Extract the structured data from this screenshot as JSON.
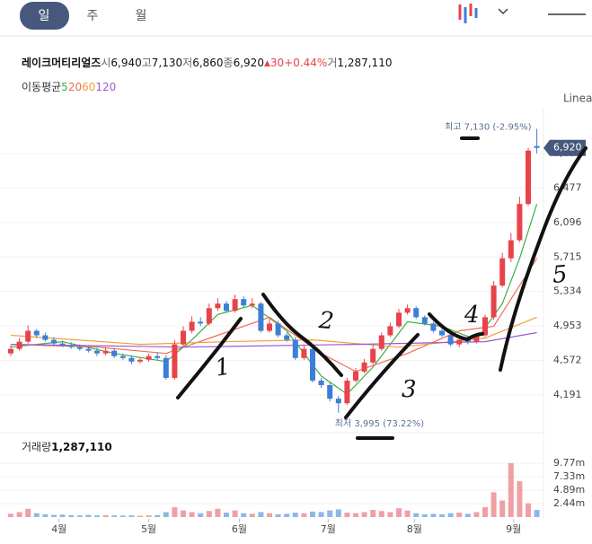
{
  "header": {
    "tabs": [
      "일",
      "주",
      "월"
    ]
  },
  "chart_data": {
    "type": "candlestick",
    "name": "레이크머티리얼즈",
    "summary": [
      {
        "label": "시",
        "value": "6,940"
      },
      {
        "label": "고",
        "value": "7,130"
      },
      {
        "label": "저",
        "value": "6,860"
      },
      {
        "label": "종",
        "value": "6,920"
      }
    ],
    "change": "30",
    "change_pct": "+0.44%",
    "volume_label": "거",
    "volume_text": "1,287,110",
    "ma_title": "이동평균",
    "scale_label": "Linear",
    "high_label": "최고 7,130 (-2.95%)",
    "low_label": "최저 3,995 (73.22%)",
    "last_label": "6,920",
    "up_color": "#e8434a",
    "down_color": "#3d7ed6",
    "ylim": [
      3993,
      7264
    ],
    "yticks": [
      {
        "value": 4191,
        "label": "4,191"
      },
      {
        "value": 4572,
        "label": "4,572"
      },
      {
        "value": 4953,
        "label": "4,953"
      },
      {
        "value": 5334,
        "label": "5,334"
      },
      {
        "value": 5715,
        "label": "5,715"
      },
      {
        "value": 6096,
        "label": "6,096"
      },
      {
        "value": 6477,
        "label": "6,477"
      },
      {
        "value": 6858,
        "label": "6,858"
      }
    ],
    "xticks": [
      {
        "value": 5.6,
        "label": "4월"
      },
      {
        "value": 16,
        "label": "5월"
      },
      {
        "value": 26.5,
        "label": "6월"
      },
      {
        "value": 36.8,
        "label": "7월"
      },
      {
        "value": 46.8,
        "label": "8월"
      },
      {
        "value": 58.3,
        "label": "9월"
      }
    ],
    "open": [
      4650,
      4700,
      4780,
      4900,
      4850,
      4800,
      4760,
      4740,
      4720,
      4700,
      4680,
      4650,
      4680,
      4620,
      4600,
      4560,
      4580,
      4620,
      4600,
      4380,
      4750,
      4900,
      5000,
      4980,
      5150,
      5200,
      5120,
      5250,
      5180,
      5200,
      4900,
      4980,
      4850,
      4800,
      4600,
      4700,
      4350,
      4300,
      4150,
      4100,
      4350,
      4450,
      4550,
      4700,
      4850,
      4950,
      5100,
      5150,
      5050,
      4980,
      4900,
      4850,
      4750,
      4800,
      4780,
      4850,
      5050,
      5400,
      5700,
      5900,
      6300,
      6940
    ],
    "high": [
      4740,
      4820,
      4960,
      4920,
      4880,
      4830,
      4790,
      4770,
      4750,
      4730,
      4710,
      4720,
      4710,
      4650,
      4630,
      4610,
      4650,
      4660,
      4630,
      4800,
      4950,
      5060,
      5050,
      5200,
      5260,
      5230,
      5300,
      5280,
      5260,
      5220,
      5030,
      5010,
      4880,
      4830,
      4740,
      4730,
      4380,
      4330,
      4180,
      4380,
      4490,
      4590,
      4740,
      4880,
      4990,
      5140,
      5190,
      5170,
      5070,
      5000,
      4920,
      4870,
      4830,
      4830,
      4870,
      5080,
      5450,
      5760,
      5980,
      6380,
      6920,
      7130
    ],
    "low": [
      4620,
      4680,
      4760,
      4820,
      4780,
      4740,
      4720,
      4700,
      4680,
      4660,
      4620,
      4630,
      4600,
      4580,
      4530,
      4540,
      4560,
      4580,
      4360,
      4360,
      4720,
      4870,
      4950,
      4960,
      5120,
      5100,
      5100,
      5160,
      5150,
      4880,
      4880,
      4830,
      4780,
      4580,
      4580,
      4330,
      4270,
      4120,
      3995,
      4080,
      4330,
      4430,
      4530,
      4680,
      4830,
      4930,
      5080,
      5030,
      4960,
      4880,
      4830,
      4730,
      4720,
      4750,
      4760,
      4830,
      5020,
      5380,
      5660,
      5880,
      6280,
      6860
    ],
    "close": [
      4700,
      4780,
      4900,
      4850,
      4800,
      4760,
      4740,
      4720,
      4700,
      4680,
      4650,
      4680,
      4620,
      4600,
      4560,
      4580,
      4620,
      4600,
      4380,
      4750,
      4900,
      5000,
      4980,
      5150,
      5200,
      5120,
      5250,
      5180,
      5200,
      4900,
      4980,
      4850,
      4800,
      4600,
      4700,
      4350,
      4300,
      4150,
      4100,
      4350,
      4450,
      4550,
      4700,
      4850,
      4950,
      5100,
      5150,
      5050,
      4980,
      4900,
      4850,
      4750,
      4800,
      4780,
      4850,
      5050,
      5400,
      5700,
      5900,
      6300,
      6890,
      6920
    ],
    "ma": [
      {
        "name": "5",
        "color": "#3fae49",
        "x": [
          0,
          6,
          12,
          18,
          21,
          24,
          28,
          32,
          36,
          39,
          42,
          46,
          50,
          54,
          57,
          59,
          61
        ],
        "values": [
          4720,
          4780,
          4650,
          4560,
          4800,
          5080,
          5180,
          4900,
          4400,
          4200,
          4500,
          5000,
          4950,
          4800,
          5200,
          5700,
          6300
        ]
      },
      {
        "name": "20",
        "color": "#f06a5a",
        "x": [
          0,
          10,
          18,
          24,
          30,
          36,
          40,
          46,
          52,
          56,
          61
        ],
        "values": [
          4750,
          4720,
          4650,
          4850,
          5050,
          4650,
          4450,
          4650,
          4900,
          4950,
          5700
        ]
      },
      {
        "name": "60",
        "color": "#f0a040",
        "x": [
          0,
          15,
          25,
          35,
          45,
          55,
          61
        ],
        "values": [
          4850,
          4750,
          4780,
          4800,
          4720,
          4820,
          5050
        ]
      },
      {
        "name": "120",
        "color": "#9b59d0",
        "x": [
          0,
          20,
          40,
          55,
          61
        ],
        "values": [
          4750,
          4720,
          4750,
          4780,
          4880
        ]
      }
    ],
    "volume": {
      "title": "거래량",
      "total": "1,287,110",
      "ylim": [
        0,
        14500000
      ],
      "yticks": [
        {
          "value": 2440000,
          "label": "2.44m"
        },
        {
          "value": 4890000,
          "label": "4.89m"
        },
        {
          "value": 7330000,
          "label": "7.33m"
        },
        {
          "value": 9770000,
          "label": "9.77m"
        }
      ],
      "values": [
        600000,
        900000,
        1500000,
        700000,
        500000,
        400000,
        450000,
        350000,
        300000,
        400000,
        300000,
        350000,
        300000,
        280000,
        300000,
        250000,
        300000,
        350000,
        900000,
        1800000,
        1200000,
        900000,
        700000,
        1100000,
        1500000,
        800000,
        1200000,
        700000,
        600000,
        900000,
        700000,
        500000,
        600000,
        800000,
        700000,
        1000000,
        900000,
        1200000,
        1400000,
        800000,
        700000,
        900000,
        1300000,
        1100000,
        900000,
        1600000,
        1200000,
        700000,
        500000,
        600000,
        500000,
        700000,
        800000,
        600000,
        900000,
        1800000,
        4500000,
        3000000,
        9800000,
        6500000,
        2500000,
        1287110
      ]
    }
  },
  "handwriting": [
    "1",
    "2",
    "3",
    "4",
    "5"
  ]
}
